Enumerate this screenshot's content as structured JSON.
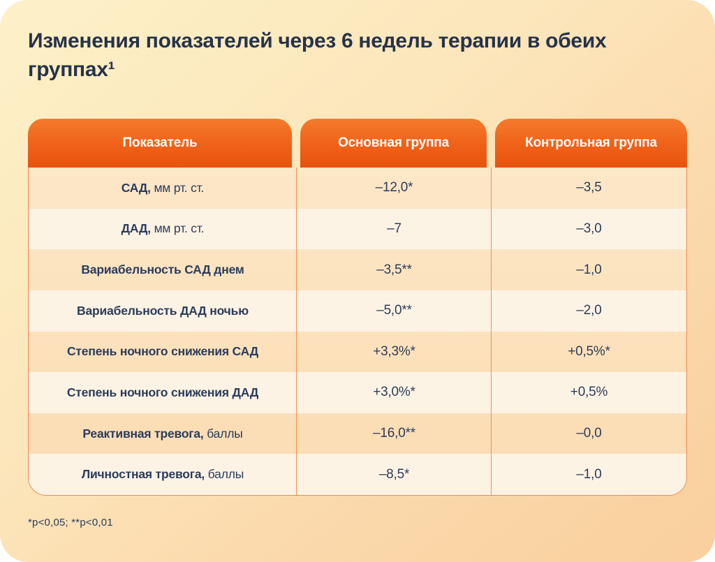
{
  "title": "Изменения показателей через 6 недель терапии в обеих группах¹",
  "footnote": "*p<0,05; **p<0,01",
  "colors": {
    "card_gradient_start": "#fdf1c8",
    "card_gradient_end": "#f9cf9d",
    "header_orange_top": "#f57b2d",
    "header_orange_bottom": "#e75310",
    "row_odd": "#fce6c5",
    "row_even": "#fdf3e4",
    "divider": "#f0914f",
    "text_navy": "#2b3c5c",
    "title_navy": "#263349"
  },
  "table": {
    "headers": [
      "Показатель",
      "Основная группа",
      "Контрольная группа"
    ],
    "rows": [
      {
        "label_bold": "САД,",
        "label_rest": " мм рт. ст.",
        "main": "–12,0*",
        "control": "–3,5"
      },
      {
        "label_bold": "ДАД,",
        "label_rest": " мм рт. ст.",
        "main": "–7",
        "control": "–3,0"
      },
      {
        "label_bold": "Вариабельность САД днем",
        "label_rest": "",
        "main": "–3,5**",
        "control": "–1,0"
      },
      {
        "label_bold": "Вариабельность ДАД ночью",
        "label_rest": "",
        "main": "–5,0**",
        "control": "–2,0"
      },
      {
        "label_bold": "Степень ночного снижения САД",
        "label_rest": "",
        "main": "+3,3%*",
        "control": "+0,5%*"
      },
      {
        "label_bold": "Степень ночного снижения ДАД",
        "label_rest": "",
        "main": "+3,0%*",
        "control": "+0,5%"
      },
      {
        "label_bold": "Реактивная тревога,",
        "label_rest": " баллы",
        "main": "–16,0**",
        "control": "–0,0"
      },
      {
        "label_bold": "Личностная тревога,",
        "label_rest": " баллы",
        "main": "–8,5*",
        "control": "–1,0"
      }
    ]
  },
  "chart_data": {
    "type": "table",
    "title": "Изменения показателей через 6 недель терапии в обеих группах¹",
    "columns": [
      "Показатель",
      "Основная группа",
      "Контрольная группа"
    ],
    "rows": [
      [
        "САД, мм рт. ст.",
        "–12,0*",
        "–3,5"
      ],
      [
        "ДАД, мм рт. ст.",
        "–7",
        "–3,0"
      ],
      [
        "Вариабельность САД днем",
        "–3,5**",
        "–1,0"
      ],
      [
        "Вариабельность ДАД ночью",
        "–5,0**",
        "–2,0"
      ],
      [
        "Степень ночного снижения САД",
        "+3,3%*",
        "+0,5%*"
      ],
      [
        "Степень ночного снижения ДАД",
        "+3,0%*",
        "+0,5%"
      ],
      [
        "Реактивная тревога, баллы",
        "–16,0**",
        "–0,0"
      ],
      [
        "Личностная тревога, баллы",
        "–8,5*",
        "–1,0"
      ]
    ],
    "annotations": "*p<0,05; **p<0,01"
  }
}
